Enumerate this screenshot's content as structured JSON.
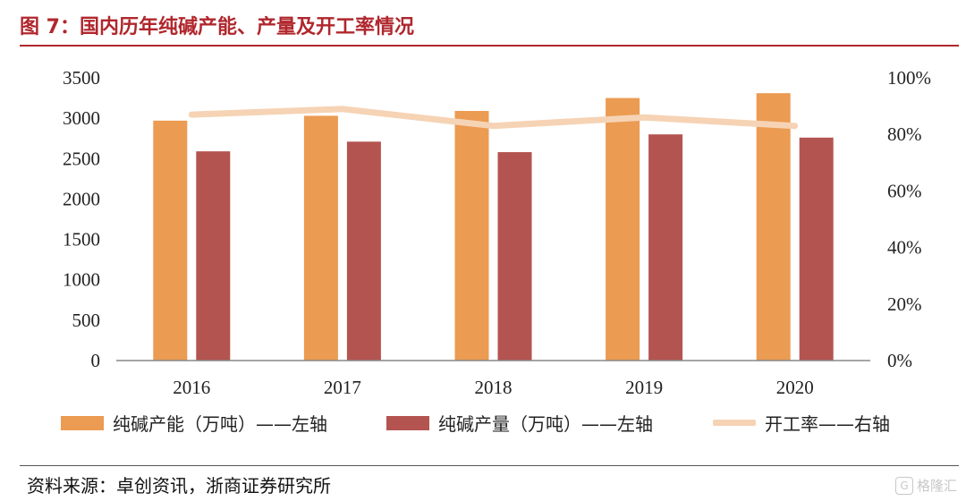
{
  "figure": {
    "title": "图 7：国内历年纯碱产能、产量及开工率情况",
    "source": "资料来源：卓创资讯，浙商证券研究所",
    "watermark": "格隆汇",
    "watermark_logo": "G"
  },
  "legend": [
    {
      "label": "纯碱产能（万吨）——左轴",
      "color": "#eb9b52",
      "kind": "bar"
    },
    {
      "label": "纯碱产量（万吨）——左轴",
      "color": "#b45450",
      "kind": "bar"
    },
    {
      "label": "开工率——右轴",
      "color": "#f6d3b5",
      "kind": "line"
    }
  ],
  "chart_data": {
    "type": "bar",
    "title": "图 7：国内历年纯碱产能、产量及开工率情况",
    "categories": [
      "2016",
      "2017",
      "2018",
      "2019",
      "2020"
    ],
    "series": [
      {
        "name": "纯碱产能（万吨）——左轴",
        "axis": "left",
        "type": "bar",
        "color": "#eb9b52",
        "values": [
          2970,
          3030,
          3090,
          3250,
          3310
        ]
      },
      {
        "name": "纯碱产量（万吨）——左轴",
        "axis": "left",
        "type": "bar",
        "color": "#b45450",
        "values": [
          2590,
          2710,
          2580,
          2800,
          2760
        ]
      },
      {
        "name": "开工率——右轴",
        "axis": "right",
        "type": "line",
        "color": "#f6d3b5",
        "values": [
          87,
          89,
          83,
          86,
          83
        ]
      }
    ],
    "y_left": {
      "min": 0,
      "max": 3500,
      "step": 500,
      "ticks": [
        "0",
        "500",
        "1000",
        "1500",
        "2000",
        "2500",
        "3000",
        "3500"
      ]
    },
    "y_right": {
      "min": 0,
      "max": 100,
      "step": 20,
      "ticks": [
        "0%",
        "20%",
        "40%",
        "60%",
        "80%",
        "100%"
      ]
    },
    "grid": false,
    "legend_position": "bottom"
  }
}
